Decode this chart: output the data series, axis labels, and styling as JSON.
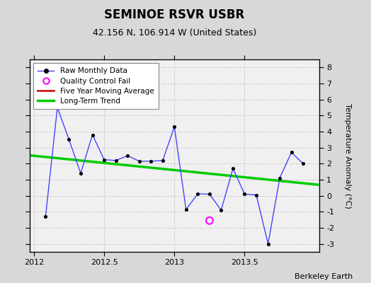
{
  "title": "SEMINOE RSVR USBR",
  "subtitle": "42.156 N, 106.914 W (United States)",
  "credit": "Berkeley Earth",
  "ylabel": "Temperature Anomaly (°C)",
  "xlim": [
    2011.97,
    2014.03
  ],
  "ylim": [
    -3.5,
    8.5
  ],
  "yticks": [
    -3,
    -2,
    -1,
    0,
    1,
    2,
    3,
    4,
    5,
    6,
    7,
    8
  ],
  "xticks": [
    2012,
    2012.5,
    2013,
    2013.5
  ],
  "xticklabels": [
    "2012",
    "2012.5",
    "2013",
    "2013.5"
  ],
  "bg_color": "#d8d8d8",
  "plot_bg": "#f0f0f0",
  "raw_x": [
    2012.083,
    2012.167,
    2012.25,
    2012.333,
    2012.417,
    2012.5,
    2012.583,
    2012.667,
    2012.75,
    2012.833,
    2012.917,
    2013.0,
    2013.083,
    2013.167,
    2013.25,
    2013.333,
    2013.417,
    2013.5,
    2013.583,
    2013.667,
    2013.75,
    2013.833,
    2013.917
  ],
  "raw_y": [
    -1.3,
    5.5,
    3.5,
    1.4,
    3.8,
    2.25,
    2.2,
    2.5,
    2.15,
    2.15,
    2.2,
    4.3,
    -0.85,
    0.12,
    0.1,
    -0.9,
    1.7,
    0.1,
    0.05,
    -3.0,
    1.1,
    2.7,
    2.0
  ],
  "qc_x": [
    2013.25
  ],
  "qc_y": [
    -1.55
  ],
  "trend_x": [
    2011.97,
    2014.03
  ],
  "trend_y": [
    2.52,
    0.68
  ],
  "raw_line_color": "#4444ff",
  "raw_dot_color": "#000000",
  "trend_color": "#00cc00",
  "moving_avg_color": "#cc0000",
  "qc_color": "#ff00ff",
  "grid_color": "#c8c8c8",
  "title_fontsize": 12,
  "subtitle_fontsize": 9,
  "tick_fontsize": 8,
  "ylabel_fontsize": 8
}
